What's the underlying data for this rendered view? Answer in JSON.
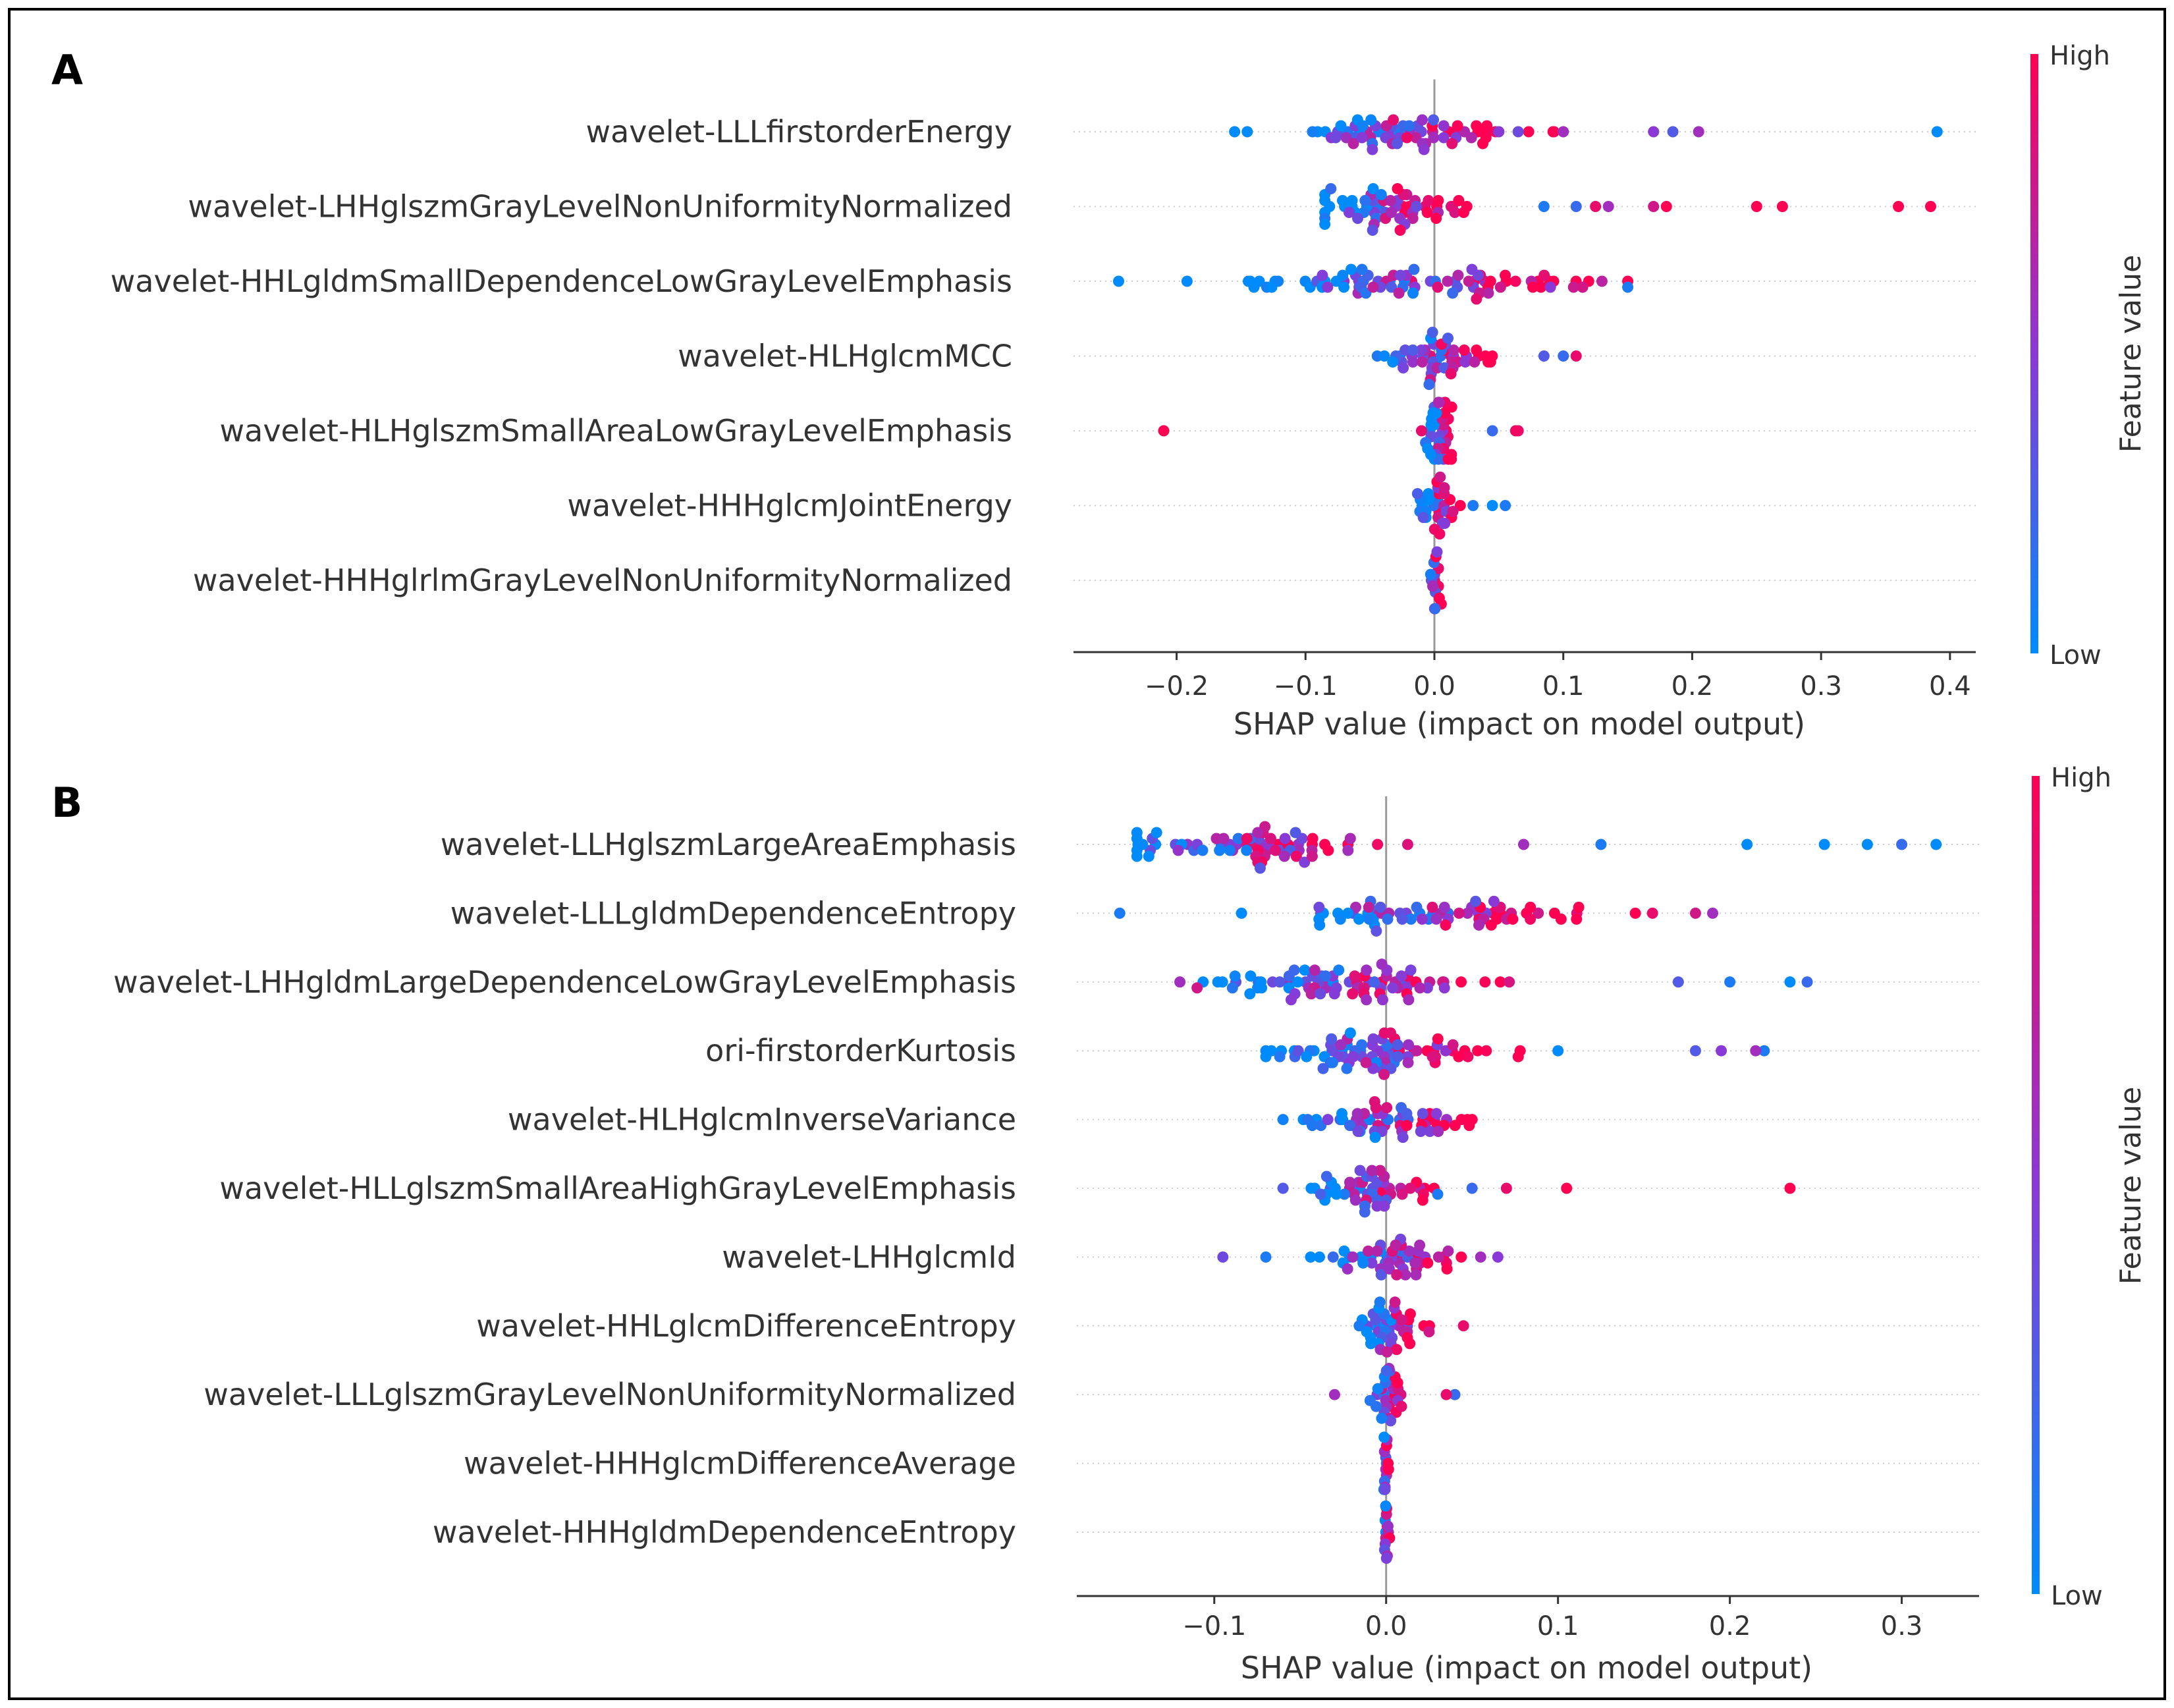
{
  "chart_data": [
    {
      "panel": "A",
      "type": "scatter",
      "subtype": "shap-beeswarm",
      "xlabel": "SHAP value (impact on model output)",
      "xlim": [
        -0.28,
        0.42
      ],
      "xticks": [
        -0.2,
        -0.1,
        0.0,
        0.1,
        0.2,
        0.3,
        0.4
      ],
      "xtick_labels": [
        "−0.2",
        "−0.1",
        "0.0",
        "0.1",
        "0.2",
        "0.3",
        "0.4"
      ],
      "colorbar": {
        "title": "Feature value",
        "high_label": "High",
        "low_label": "Low",
        "high_color": "#ff0052",
        "low_color": "#008bfb"
      },
      "features": [
        {
          "name": "wavelet-LLLfirstorderEnergy",
          "min": -0.155,
          "max": 0.39,
          "center": -0.03,
          "spread": 0.045,
          "count": 70,
          "outliers": [
            {
              "x": 0.39,
              "c": 0.0
            },
            {
              "x": 0.205,
              "c": 0.6
            },
            {
              "x": 0.185,
              "c": 0.3
            },
            {
              "x": 0.17,
              "c": 0.5
            },
            {
              "x": 0.1,
              "c": 0.6
            },
            {
              "x": 0.065,
              "c": 0.4
            },
            {
              "x": 0.05,
              "c": 0.5
            }
          ]
        },
        {
          "name": "wavelet-LHHglszmGrayLevelNonUniformityNormalized",
          "min": -0.085,
          "max": 0.385,
          "center": -0.04,
          "spread": 0.03,
          "count": 60,
          "outliers": [
            {
              "x": 0.385,
              "c": 1.0
            },
            {
              "x": 0.36,
              "c": 1.0
            },
            {
              "x": 0.27,
              "c": 1.0
            },
            {
              "x": 0.25,
              "c": 1.0
            },
            {
              "x": 0.18,
              "c": 1.0
            },
            {
              "x": 0.17,
              "c": 0.8
            },
            {
              "x": 0.135,
              "c": 0.6
            },
            {
              "x": 0.125,
              "c": 0.9
            },
            {
              "x": 0.11,
              "c": 0.2
            },
            {
              "x": 0.085,
              "c": 0.1
            }
          ]
        },
        {
          "name": "wavelet-HHLgldmSmallDependenceLowGrayLevelEmphasis",
          "min": -0.245,
          "max": 0.15,
          "center": -0.01,
          "spread": 0.06,
          "count": 80,
          "outliers": [
            {
              "x": -0.245,
              "c": 0.0
            },
            {
              "x": -0.14,
              "c": 0.0
            },
            {
              "x": 0.15,
              "c": 0.1
            },
            {
              "x": 0.13,
              "c": 0.7
            },
            {
              "x": 0.115,
              "c": 0.8
            },
            {
              "x": 0.09,
              "c": 0.5
            }
          ]
        },
        {
          "name": "wavelet-HLHglcmMCC",
          "min": -0.05,
          "max": 0.11,
          "center": 0.0,
          "spread": 0.02,
          "count": 50,
          "outliers": [
            {
              "x": 0.11,
              "c": 0.9
            },
            {
              "x": 0.1,
              "c": 0.2
            },
            {
              "x": 0.085,
              "c": 0.3
            }
          ]
        },
        {
          "name": "wavelet-HLHglszmSmallAreaLowGrayLevelEmphasis",
          "min": -0.21,
          "max": 0.065,
          "center": 0.005,
          "spread": 0.005,
          "count": 35,
          "outliers": [
            {
              "x": -0.21,
              "c": 1.0
            },
            {
              "x": -0.01,
              "c": 0.9
            },
            {
              "x": 0.065,
              "c": 0.9
            },
            {
              "x": 0.063,
              "c": 0.95
            },
            {
              "x": 0.045,
              "c": 0.2
            }
          ]
        },
        {
          "name": "wavelet-HHHglcmJointEnergy",
          "min": -0.02,
          "max": 0.055,
          "center": 0.0,
          "spread": 0.01,
          "count": 30,
          "outliers": [
            {
              "x": 0.055,
              "c": 0.1
            },
            {
              "x": 0.045,
              "c": 0.0
            },
            {
              "x": 0.03,
              "c": 0.1
            }
          ]
        },
        {
          "name": "wavelet-HHHglrlmGrayLevelNonUniformityNormalized",
          "min": -0.005,
          "max": 0.01,
          "center": 0.0,
          "spread": 0.002,
          "count": 15,
          "outliers": []
        }
      ]
    },
    {
      "panel": "B",
      "type": "scatter",
      "subtype": "shap-beeswarm",
      "xlabel": "SHAP value (impact on model output)",
      "xlim": [
        -0.18,
        0.345
      ],
      "xticks": [
        -0.1,
        0.0,
        0.1,
        0.2,
        0.3
      ],
      "xtick_labels": [
        "−0.1",
        "0.0",
        "0.1",
        "0.2",
        "0.3"
      ],
      "colorbar": {
        "title": "Feature value",
        "high_label": "High",
        "low_label": "Low",
        "high_color": "#ff0052",
        "low_color": "#008bfb"
      },
      "features": [
        {
          "name": "wavelet-LLHglszmLargeAreaEmphasis",
          "min": -0.145,
          "max": 0.32,
          "center": -0.08,
          "spread": 0.04,
          "count": 70,
          "outliers": [
            {
              "x": 0.32,
              "c": 0.0
            },
            {
              "x": 0.3,
              "c": 0.2
            },
            {
              "x": 0.28,
              "c": 0.0
            },
            {
              "x": 0.255,
              "c": 0.0
            },
            {
              "x": 0.21,
              "c": 0.0
            },
            {
              "x": 0.125,
              "c": 0.1
            },
            {
              "x": 0.08,
              "c": 0.6
            }
          ]
        },
        {
          "name": "wavelet-LLLgldmDependenceEntropy",
          "min": -0.155,
          "max": 0.19,
          "center": 0.02,
          "spread": 0.045,
          "count": 70,
          "outliers": [
            {
              "x": -0.155,
              "c": 0.1
            },
            {
              "x": 0.19,
              "c": 0.6
            },
            {
              "x": 0.18,
              "c": 0.8
            },
            {
              "x": 0.155,
              "c": 0.9
            },
            {
              "x": 0.145,
              "c": 1.0
            }
          ]
        },
        {
          "name": "wavelet-LHHgldmLargeDependenceLowGrayLevelEmphasis",
          "min": -0.12,
          "max": 0.245,
          "center": -0.02,
          "spread": 0.04,
          "count": 80,
          "outliers": [
            {
              "x": 0.245,
              "c": 0.2
            },
            {
              "x": 0.235,
              "c": 0.0
            },
            {
              "x": 0.2,
              "c": 0.1
            },
            {
              "x": 0.17,
              "c": 0.3
            },
            {
              "x": -0.12,
              "c": 0.6
            },
            {
              "x": -0.11,
              "c": 0.8
            }
          ]
        },
        {
          "name": "ori-firstorderKurtosis",
          "min": -0.07,
          "max": 0.22,
          "center": 0.0,
          "spread": 0.03,
          "count": 80,
          "outliers": [
            {
              "x": 0.22,
              "c": 0.1
            },
            {
              "x": 0.215,
              "c": 0.6
            },
            {
              "x": 0.195,
              "c": 0.5
            },
            {
              "x": 0.18,
              "c": 0.3
            },
            {
              "x": 0.1,
              "c": 0.0
            }
          ]
        },
        {
          "name": "wavelet-HLHglcmInverseVariance",
          "min": -0.06,
          "max": 0.05,
          "center": 0.0,
          "spread": 0.025,
          "count": 60,
          "outliers": []
        },
        {
          "name": "wavelet-HLLglszmSmallAreaHighGrayLevelEmphasis",
          "min": -0.06,
          "max": 0.235,
          "center": -0.01,
          "spread": 0.02,
          "count": 50,
          "outliers": [
            {
              "x": 0.235,
              "c": 1.0
            },
            {
              "x": 0.105,
              "c": 1.0
            },
            {
              "x": 0.07,
              "c": 0.9
            },
            {
              "x": 0.05,
              "c": 0.2
            },
            {
              "x": 0.03,
              "c": 0.1
            },
            {
              "x": -0.06,
              "c": 0.3
            }
          ]
        },
        {
          "name": "wavelet-LHHglcmId",
          "min": -0.095,
          "max": 0.065,
          "center": 0.0,
          "spread": 0.02,
          "count": 50,
          "outliers": [
            {
              "x": -0.095,
              "c": 0.4
            },
            {
              "x": -0.07,
              "c": 0.1
            },
            {
              "x": 0.065,
              "c": 0.5
            },
            {
              "x": 0.055,
              "c": 0.6
            }
          ]
        },
        {
          "name": "wavelet-HHLglcmDifferenceEntropy",
          "min": -0.02,
          "max": 0.045,
          "center": 0.005,
          "spread": 0.01,
          "count": 40,
          "outliers": [
            {
              "x": 0.045,
              "c": 0.9
            },
            {
              "x": 0.025,
              "c": 0.8
            }
          ]
        },
        {
          "name": "wavelet-LLLglszmGrayLevelNonUniformityNormalized",
          "min": -0.03,
          "max": 0.04,
          "center": 0.0,
          "spread": 0.005,
          "count": 30,
          "outliers": [
            {
              "x": -0.03,
              "c": 0.6
            },
            {
              "x": 0.04,
              "c": 0.2
            },
            {
              "x": 0.035,
              "c": 0.9
            }
          ]
        },
        {
          "name": "wavelet-HHHglcmDifferenceAverage",
          "min": -0.002,
          "max": 0.002,
          "center": 0.0,
          "spread": 0.001,
          "count": 14,
          "outliers": []
        },
        {
          "name": "wavelet-HHHgldmDependenceEntropy",
          "min": -0.002,
          "max": 0.002,
          "center": 0.0,
          "spread": 0.001,
          "count": 14,
          "outliers": []
        }
      ]
    }
  ]
}
